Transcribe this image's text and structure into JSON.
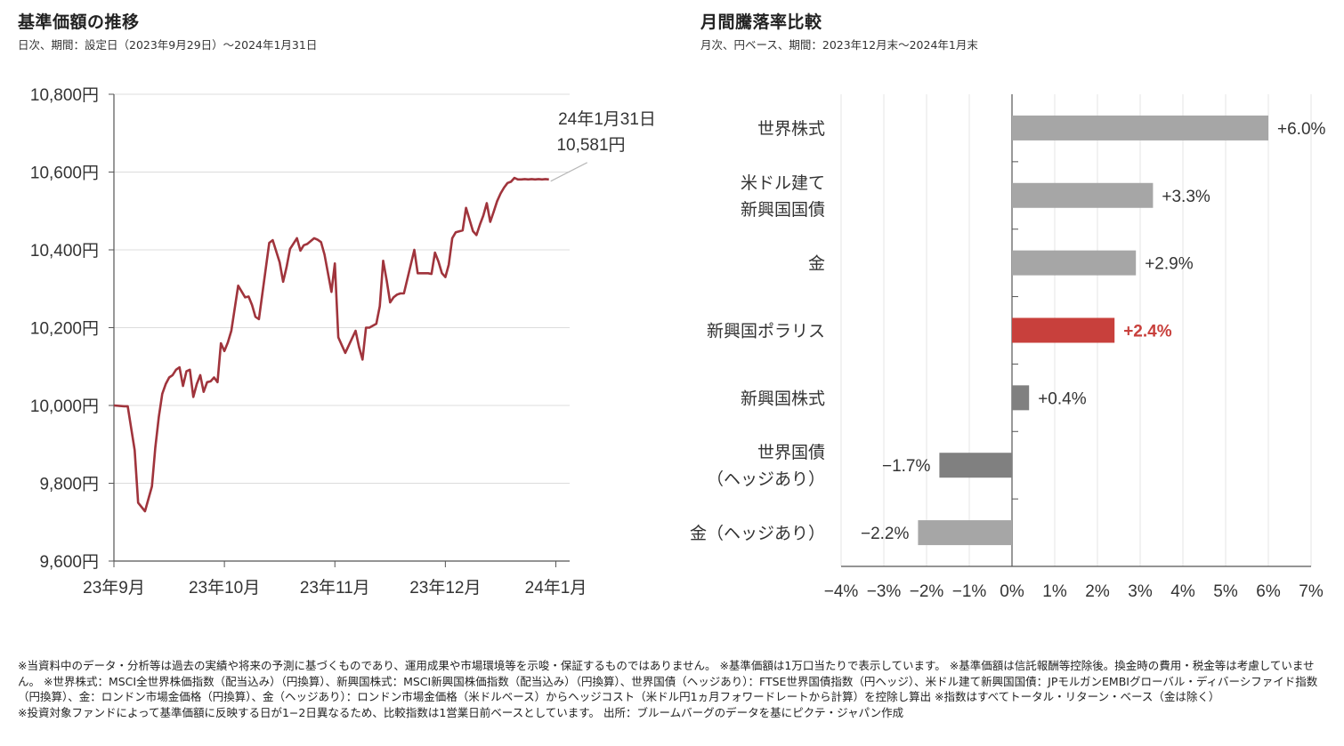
{
  "left_panel": {
    "title": "基準価額の推移",
    "subtitle": "日次、期間：設定日（2023年9月29日）〜2024年1月31日",
    "callout_date": "24年1月31日",
    "callout_value": "10,581円"
  },
  "right_panel": {
    "title": "月間騰落率比較",
    "subtitle": "月次、円ベース、期間：2023年12月末〜2024年1月末"
  },
  "chart_data": [
    {
      "type": "line",
      "title": "基準価額の推移",
      "line_color": "#a0343c",
      "ylim": [
        9600,
        10800
      ],
      "y_ticks": [
        9600,
        9800,
        10000,
        10200,
        10400,
        10600,
        10800
      ],
      "y_tick_labels": [
        "9,600円",
        "9,800円",
        "10,000円",
        "10,200円",
        "10,400円",
        "10,600円",
        "10,800円"
      ],
      "x_labels": [
        "23年9月",
        "23年10月",
        "23年11月",
        "23年12月",
        "24年1月"
      ],
      "x_label_positions": [
        0,
        32,
        64,
        96,
        128
      ],
      "x_range": [
        0,
        132
      ],
      "series": [
        {
          "x": [
            0,
            3,
            4,
            6,
            7,
            9,
            11,
            12,
            13,
            14,
            15,
            16,
            17,
            18,
            19,
            20,
            21,
            22,
            23,
            24,
            25,
            26,
            27,
            28,
            29,
            30,
            31,
            32,
            33,
            34,
            36,
            38,
            39,
            40,
            41,
            42,
            45,
            46,
            48,
            49,
            50,
            51,
            53,
            54,
            55,
            56,
            58,
            59,
            60,
            61,
            63,
            64,
            65,
            66,
            67,
            70,
            71,
            72,
            73,
            74,
            76,
            77,
            78,
            79,
            80,
            81,
            82,
            83,
            84,
            87,
            88,
            89,
            90,
            91,
            92,
            93,
            94,
            95,
            96,
            97,
            98,
            99,
            101,
            102,
            104,
            105,
            106,
            107,
            108,
            109,
            110,
            111,
            112,
            113,
            114,
            115,
            116,
            117,
            118,
            119,
            120,
            121,
            122,
            123,
            124,
            125,
            126
          ],
          "y": [
            10000,
            9998,
            9998,
            9885,
            9750,
            9728,
            9792,
            9892,
            9970,
            10030,
            10055,
            10072,
            10078,
            10092,
            10098,
            10050,
            10088,
            10092,
            10022,
            10055,
            10078,
            10035,
            10060,
            10062,
            10072,
            10060,
            10160,
            10140,
            10162,
            10192,
            10308,
            10278,
            10280,
            10258,
            10228,
            10222,
            10418,
            10425,
            10368,
            10318,
            10355,
            10402,
            10430,
            10398,
            10412,
            10415,
            10430,
            10426,
            10420,
            10388,
            10292,
            10365,
            10175,
            10155,
            10135,
            10192,
            10150,
            10118,
            10200,
            10200,
            10210,
            10255,
            10372,
            10322,
            10265,
            10278,
            10285,
            10288,
            10288,
            10400,
            10340,
            10340,
            10340,
            10340,
            10338,
            10393,
            10370,
            10340,
            10330,
            10362,
            10430,
            10445,
            10450,
            10508,
            10448,
            10438,
            10465,
            10488,
            10520,
            10472,
            10498,
            10525,
            10545,
            10560,
            10572,
            10575,
            10585,
            10581,
            10581,
            10582,
            10581,
            10582,
            10581,
            10582,
            10581,
            10582,
            10581
          ]
        }
      ]
    },
    {
      "type": "bar",
      "title": "月間騰落率比較",
      "orientation": "horizontal",
      "xlim": [
        -4,
        7
      ],
      "x_ticks": [
        -4,
        -3,
        -2,
        -1,
        0,
        1,
        2,
        3,
        4,
        5,
        6,
        7
      ],
      "x_tick_labels": [
        "−4%",
        "−3%",
        "−2%",
        "−1%",
        "0%",
        "1%",
        "2%",
        "3%",
        "4%",
        "5%",
        "6%",
        "7%"
      ],
      "categories": [
        "世界株式",
        "米ドル建て\n新興国国債",
        "金",
        "新興国ポラリス",
        "新興国株式",
        "世界国債\n（ヘッジあり）",
        "金（ヘッジあり）"
      ],
      "values": [
        6.0,
        3.3,
        2.9,
        2.4,
        0.4,
        -1.7,
        -2.2
      ],
      "value_labels": [
        "+6.0%",
        "+3.3%",
        "+2.9%",
        "+2.4%",
        "+0.4%",
        "−1.7%",
        "−2.2%"
      ],
      "colors": [
        "#a6a6a6",
        "#a6a6a6",
        "#a6a6a6",
        "#c8403c",
        "#808080",
        "#808080",
        "#a6a6a6"
      ],
      "highlight_index": 3
    }
  ],
  "notes": [
    "※当資料中のデータ・分析等は過去の実績や将来の予測に基づくものであり、運用成果や市場環境等を示唆・保証するものではありません。 ※基準価額は1万口当たりで表示しています。 ※基準価額は信託報酬等控除後。換金時の費用・税金等は考慮していません。 ※世界株式：MSCI全世界株価指数（配当込み）（円換算）、新興国株式：MSCI新興国株価指数（配当込み）（円換算）、世界国債（ヘッジあり）：FTSE世界国債指数（円ヘッジ）、米ドル建て新興国国債：JPモルガンEMBIグローバル・ディバーシファイド指数（円換算）、金：ロンドン市場金価格（円換算）、金（ヘッジあり）：ロンドン市場金価格（米ドルベース）からヘッジコスト（米ドル円1ヵ月フォワードレートから計算）を控除し算出 ※指数はすべてトータル・リターン・ベース（金は除く）",
    "※投資対象ファンドによって基準価額に反映する日が1−2日異なるため、比較指数は1営業日前ベースとしています。 出所：ブルームバーグのデータを基にピクテ・ジャパン作成"
  ]
}
